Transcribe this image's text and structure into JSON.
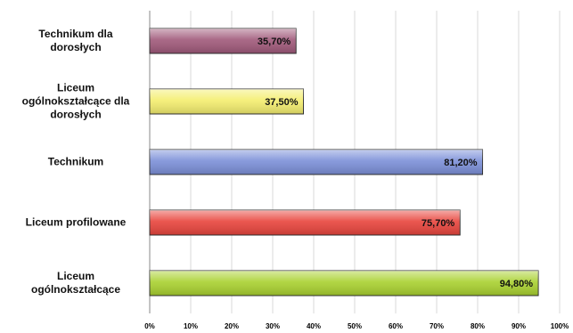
{
  "chart_data": {
    "type": "hbar",
    "categories": [
      "Technikum dla dorosłych",
      "Liceum ogólnokształcące dla dorosłych",
      "Technikum",
      "Liceum profilowane",
      "Liceum ogólnokształcące"
    ],
    "values": [
      35.7,
      37.5,
      81.2,
      75.7,
      94.8
    ],
    "value_labels": [
      "35,70%",
      "37,50%",
      "81,20%",
      "75,70%",
      "94,80%"
    ],
    "colors": [
      "#a0597a",
      "#f4ee6e",
      "#7b8fd8",
      "#e8443c",
      "#a9d12f"
    ],
    "xlim": [
      0,
      100
    ],
    "xticks": [
      {
        "value": 0,
        "label": "0%"
      },
      {
        "value": 10,
        "label": "10%"
      },
      {
        "value": 20,
        "label": "20%"
      },
      {
        "value": 30,
        "label": "30%"
      },
      {
        "value": 40,
        "label": "40%"
      },
      {
        "value": 50,
        "label": "50%"
      },
      {
        "value": 60,
        "label": "60%"
      },
      {
        "value": 70,
        "label": "70%"
      },
      {
        "value": 80,
        "label": "80%"
      },
      {
        "value": 90,
        "label": "90%"
      },
      {
        "value": 100,
        "label": "100%"
      }
    ],
    "grid": true
  }
}
